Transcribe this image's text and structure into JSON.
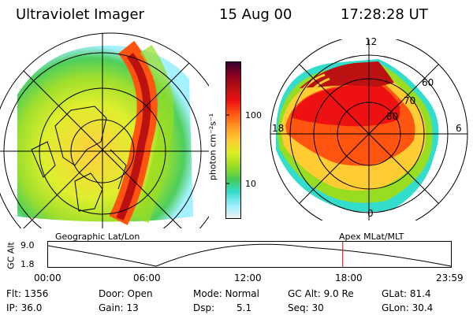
{
  "header": {
    "instrument": "Ultraviolet Imager",
    "date": "15 Aug 00",
    "time": "17:28:28 UT"
  },
  "geo_panel": {
    "label": "Geographic Lat/Lon"
  },
  "mag_panel": {
    "label": "Apex MLat/MLT",
    "mlt_labels": {
      "top": "12",
      "left": "18",
      "right": "6",
      "bottom": "0"
    },
    "lat_labels": [
      "60",
      "70",
      "80"
    ]
  },
  "colorbar": {
    "label": "photon cm⁻²s⁻¹",
    "ticks": [
      "100",
      "10"
    ],
    "colors": [
      "#f0f0f0",
      "#9ff0ff",
      "#33ddcc",
      "#44cc55",
      "#99dd22",
      "#ddee22",
      "#ffcc33",
      "#ff9922",
      "#ff5511",
      "#ee1111",
      "#bb1111",
      "#880022",
      "#330033"
    ]
  },
  "alt_plot": {
    "ylabel": "GC Alt",
    "yticks": [
      "9.0",
      "1.8"
    ],
    "xticks": [
      "00:00",
      "06:00",
      "12:00",
      "18:00",
      "23:59"
    ],
    "current_time_fraction": 0.73,
    "marker_color": "#cc0000"
  },
  "info": {
    "flt": "Flt: 1356",
    "ip": "IP: 36.0",
    "door": "Door: Open",
    "gain": "Gain: 13",
    "mode": "Mode: Normal",
    "dsp_label": "Dsp:",
    "dsp_value": "5.1",
    "gcalt": "GC Alt: 9.0 Re",
    "seq": "Seq: 30",
    "glat": "GLat: 81.4",
    "glon": "GLon: 30.4"
  }
}
